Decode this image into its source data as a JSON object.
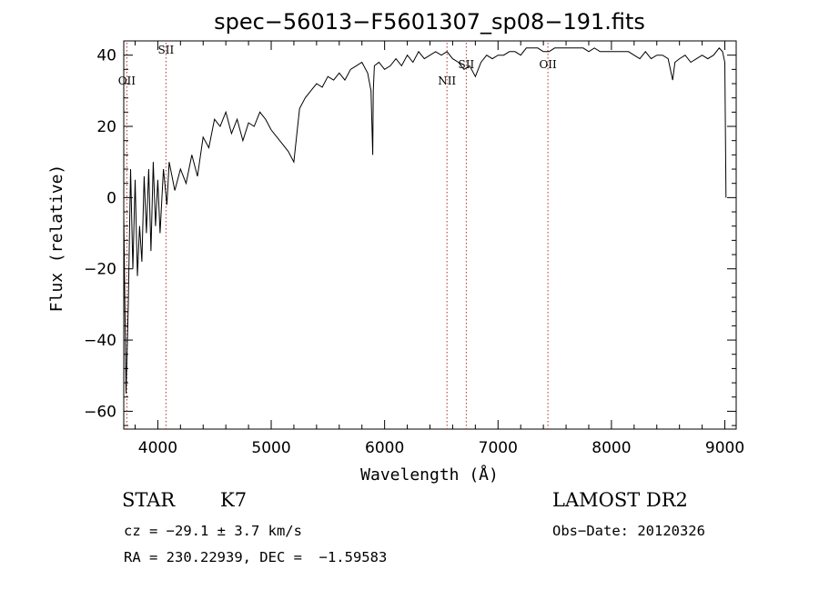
{
  "chart_data": {
    "type": "line",
    "title": "spec−56013−F5601307_sp08−191.fits",
    "xlabel": "Wavelength (Å)",
    "ylabel": "Flux (relative)",
    "xlim": [
      3700,
      9100
    ],
    "ylim": [
      -65,
      44
    ],
    "xticks": [
      4000,
      5000,
      6000,
      7000,
      8000,
      9000
    ],
    "yticks": [
      -60,
      -40,
      -20,
      0,
      20,
      40
    ],
    "ytick_labels": [
      "−60",
      "−40",
      "−20",
      "0",
      "20",
      "40"
    ],
    "grid": false,
    "series": [
      {
        "x": [
          3700,
          3720,
          3740,
          3760,
          3780,
          3800,
          3820,
          3840,
          3860,
          3880,
          3900,
          3920,
          3940,
          3960,
          3980,
          4000,
          4020,
          4050,
          4080,
          4100,
          4150,
          4200,
          4250,
          4300,
          4350,
          4400,
          4450,
          4500,
          4550,
          4600,
          4650,
          4700,
          4750,
          4800,
          4850,
          4900,
          4950,
          5000,
          5050,
          5100,
          5150,
          5200,
          5250,
          5300,
          5350,
          5400,
          5450,
          5500,
          5550,
          5600,
          5650,
          5700,
          5750,
          5800,
          5850,
          5880,
          5895,
          5900,
          5910,
          5950,
          6000,
          6050,
          6100,
          6150,
          6200,
          6250,
          6300,
          6350,
          6400,
          6450,
          6500,
          6550,
          6600,
          6650,
          6700,
          6750,
          6800,
          6850,
          6900,
          6950,
          7000,
          7050,
          7100,
          7150,
          7200,
          7250,
          7300,
          7350,
          7400,
          7450,
          7500,
          7550,
          7600,
          7650,
          7700,
          7750,
          7800,
          7850,
          7900,
          7950,
          8000,
          8050,
          8100,
          8150,
          8200,
          8250,
          8300,
          8350,
          8400,
          8450,
          8500,
          8540,
          8560,
          8600,
          8650,
          8700,
          8750,
          8800,
          8850,
          8900,
          8950,
          8980,
          9000,
          9010
        ],
        "y": [
          -5,
          -55,
          -30,
          8,
          -20,
          5,
          -22,
          -8,
          -18,
          6,
          -10,
          8,
          -15,
          10,
          -8,
          5,
          -10,
          8,
          -2,
          10,
          2,
          8,
          4,
          12,
          6,
          17,
          14,
          22,
          20,
          24,
          18,
          22,
          16,
          21,
          20,
          24,
          22,
          19,
          17,
          15,
          13,
          10,
          25,
          28,
          30,
          32,
          31,
          34,
          33,
          35,
          33,
          36,
          37,
          38,
          35,
          30,
          12,
          30,
          37,
          38,
          36,
          37,
          39,
          37,
          40,
          38,
          41,
          39,
          40,
          41,
          40,
          41,
          39,
          38,
          36,
          37,
          34,
          38,
          40,
          39,
          40,
          40,
          41,
          41,
          40,
          42,
          42,
          42,
          41,
          41,
          42,
          42,
          42,
          42,
          42,
          42,
          41,
          42,
          41,
          41,
          41,
          41,
          41,
          41,
          40,
          39,
          41,
          39,
          40,
          40,
          39,
          33,
          38,
          39,
          40,
          38,
          39,
          40,
          39,
          40,
          42,
          41,
          38,
          0
        ]
      }
    ],
    "annotations": [
      {
        "label": "OII",
        "wavelength": 3727
      },
      {
        "label": "SII",
        "wavelength": 4072
      },
      {
        "label": "NII",
        "wavelength": 6550
      },
      {
        "label": "SII",
        "wavelength": 6720
      },
      {
        "label": "OII",
        "wavelength": 7440
      }
    ]
  },
  "info": {
    "object_class": "STAR",
    "subclass": "K7",
    "survey": "LAMOST DR2",
    "cz": "cz = −29.1 ± 3.7 km/s",
    "obs_date": "Obs−Date: 20120326",
    "radec": "RA = 230.22939, DEC =  −1.59583"
  }
}
